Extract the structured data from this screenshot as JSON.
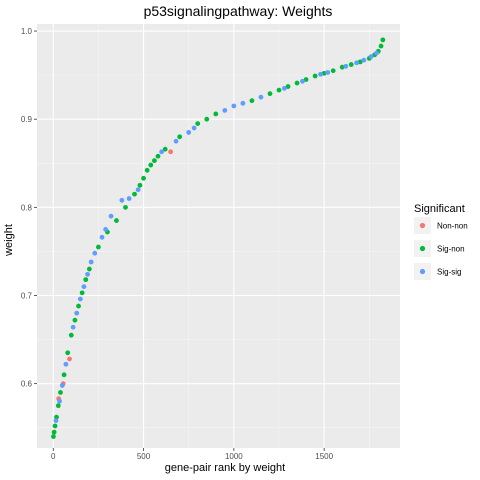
{
  "chart_data": {
    "type": "scatter",
    "title": "p53signalingpathway: Weights",
    "xlabel": "gene-pair rank by weight",
    "ylabel": "weight",
    "xlim": [
      -90,
      1920
    ],
    "ylim": [
      0.527,
      1.008
    ],
    "x_ticks": [
      0,
      500,
      1000,
      1500
    ],
    "x_tick_labels": [
      "0",
      "500",
      "1000",
      "1500"
    ],
    "y_ticks": [
      0.6,
      0.7,
      0.8,
      0.9,
      1.0
    ],
    "y_tick_labels": [
      "0.6",
      "0.7",
      "0.8",
      "0.9",
      "1.0"
    ],
    "grid": true,
    "legend_position": "right",
    "legend": {
      "title": "Significant",
      "entries": [
        {
          "label": "Non-non",
          "color": "#F8766D"
        },
        {
          "label": "Sig-non",
          "color": "#00BA38"
        },
        {
          "label": "Sig-sig",
          "color": "#619CFF"
        }
      ]
    },
    "series": [
      {
        "name": "Non-non",
        "color": "#F8766D",
        "x": [
          30,
          55,
          90,
          650
        ],
        "y": [
          0.583,
          0.6,
          0.628,
          0.863
        ]
      },
      {
        "name": "Sig-non",
        "color": "#00BA38",
        "x": [
          1,
          5,
          10,
          18,
          28,
          40,
          60,
          80,
          100,
          120,
          140,
          160,
          180,
          200,
          250,
          300,
          350,
          400,
          450,
          480,
          500,
          520,
          540,
          560,
          580,
          620,
          700,
          800,
          850,
          900,
          1100,
          1200,
          1250,
          1300,
          1350,
          1400,
          1450,
          1500,
          1550,
          1600,
          1650,
          1700,
          1750,
          1780,
          1800,
          1815,
          1825
        ],
        "y": [
          0.54,
          0.545,
          0.552,
          0.562,
          0.575,
          0.59,
          0.61,
          0.635,
          0.655,
          0.672,
          0.688,
          0.703,
          0.718,
          0.73,
          0.755,
          0.772,
          0.785,
          0.8,
          0.815,
          0.825,
          0.833,
          0.842,
          0.848,
          0.853,
          0.858,
          0.866,
          0.88,
          0.895,
          0.9,
          0.906,
          0.921,
          0.929,
          0.933,
          0.937,
          0.941,
          0.945,
          0.949,
          0.952,
          0.955,
          0.959,
          0.962,
          0.965,
          0.969,
          0.973,
          0.977,
          0.983,
          0.99
        ]
      },
      {
        "name": "Sig-sig",
        "color": "#619CFF",
        "x": [
          15,
          35,
          50,
          70,
          110,
          130,
          150,
          170,
          190,
          210,
          230,
          270,
          290,
          320,
          380,
          420,
          470,
          600,
          680,
          750,
          780,
          950,
          1000,
          1050,
          1150,
          1280,
          1380,
          1480,
          1520,
          1620,
          1680,
          1720,
          1760,
          1790
        ],
        "y": [
          0.558,
          0.58,
          0.598,
          0.622,
          0.664,
          0.68,
          0.696,
          0.71,
          0.724,
          0.738,
          0.748,
          0.766,
          0.775,
          0.79,
          0.808,
          0.81,
          0.82,
          0.863,
          0.875,
          0.885,
          0.89,
          0.91,
          0.915,
          0.918,
          0.925,
          0.935,
          0.943,
          0.951,
          0.953,
          0.96,
          0.964,
          0.967,
          0.971,
          0.975
        ]
      }
    ]
  }
}
